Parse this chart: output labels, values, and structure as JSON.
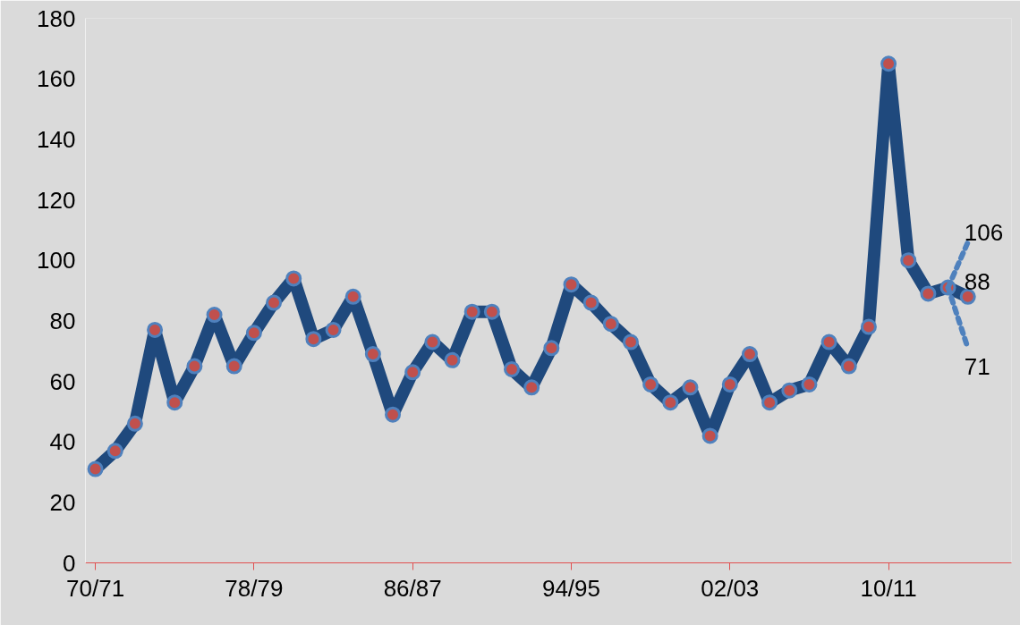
{
  "chart_data": {
    "type": "line",
    "categories": [
      "70/71",
      null,
      null,
      null,
      null,
      null,
      null,
      null,
      "78/79",
      null,
      null,
      null,
      null,
      null,
      null,
      null,
      "86/87",
      null,
      null,
      null,
      null,
      null,
      null,
      null,
      "94/95",
      null,
      null,
      null,
      null,
      null,
      null,
      null,
      "02/03",
      null,
      null,
      null,
      null,
      null,
      null,
      null,
      "10/11",
      null,
      null,
      null,
      null
    ],
    "series": [
      {
        "color": "#1f497d",
        "marker": "circle",
        "line_style": "solid",
        "values": [
          31,
          37,
          46,
          77,
          53,
          65,
          82,
          65,
          76,
          86,
          94,
          74,
          77,
          88,
          69,
          49,
          63,
          73,
          67,
          83,
          83,
          64,
          58,
          71,
          92,
          86,
          79,
          73,
          59,
          53,
          58,
          42,
          59,
          69,
          53,
          57,
          59,
          73,
          65,
          78,
          165,
          100,
          89,
          91,
          88
        ],
        "value_labels": [
          null,
          null,
          null,
          null,
          null,
          null,
          null,
          null,
          null,
          null,
          null,
          null,
          null,
          null,
          null,
          null,
          null,
          null,
          null,
          null,
          null,
          null,
          null,
          null,
          null,
          null,
          null,
          null,
          null,
          null,
          null,
          null,
          null,
          null,
          null,
          null,
          null,
          null,
          null,
          null,
          null,
          null,
          null,
          null,
          "88"
        ]
      },
      {
        "color": "#4f81bd",
        "line_style": "dashed",
        "values": [
          null,
          null,
          null,
          null,
          null,
          null,
          null,
          null,
          null,
          null,
          null,
          null,
          null,
          null,
          null,
          null,
          null,
          null,
          null,
          null,
          null,
          null,
          null,
          null,
          null,
          null,
          null,
          null,
          null,
          null,
          null,
          null,
          null,
          null,
          null,
          null,
          null,
          null,
          null,
          null,
          null,
          null,
          null,
          91,
          106
        ],
        "value_labels": [
          null,
          null,
          null,
          null,
          null,
          null,
          null,
          null,
          null,
          null,
          null,
          null,
          null,
          null,
          null,
          null,
          null,
          null,
          null,
          null,
          null,
          null,
          null,
          null,
          null,
          null,
          null,
          null,
          null,
          null,
          null,
          null,
          null,
          null,
          null,
          null,
          null,
          null,
          null,
          null,
          null,
          null,
          null,
          null,
          "106"
        ]
      },
      {
        "color": "#4f81bd",
        "line_style": "dashed",
        "values": [
          null,
          null,
          null,
          null,
          null,
          null,
          null,
          null,
          null,
          null,
          null,
          null,
          null,
          null,
          null,
          null,
          null,
          null,
          null,
          null,
          null,
          null,
          null,
          null,
          null,
          null,
          null,
          null,
          null,
          null,
          null,
          null,
          null,
          null,
          null,
          null,
          null,
          null,
          null,
          null,
          null,
          null,
          null,
          91,
          71
        ],
        "value_labels": [
          null,
          null,
          null,
          null,
          null,
          null,
          null,
          null,
          null,
          null,
          null,
          null,
          null,
          null,
          null,
          null,
          null,
          null,
          null,
          null,
          null,
          null,
          null,
          null,
          null,
          null,
          null,
          null,
          null,
          null,
          null,
          null,
          null,
          null,
          null,
          null,
          null,
          null,
          null,
          null,
          null,
          null,
          null,
          null,
          "71"
        ]
      }
    ],
    "ylim": [
      0,
      180
    ],
    "yticks": [
      0,
      20,
      40,
      60,
      80,
      100,
      120,
      140,
      160,
      180
    ],
    "grid": false
  }
}
